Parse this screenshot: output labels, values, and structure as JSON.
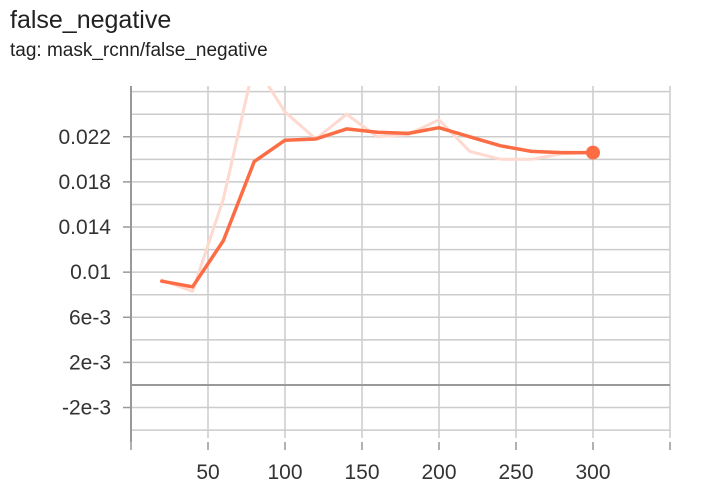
{
  "header": {
    "title": "false_negative",
    "subtitle": "tag: mask_rcnn/false_negative"
  },
  "colors": {
    "smoothed_line": "#fc6d45",
    "raw_line": "#fdd9cf",
    "grid": "#cccccc",
    "axis": "#999999",
    "zero_line": "#999999",
    "tick_text": "#333333"
  },
  "chart_data": {
    "type": "line",
    "title": "false_negative",
    "subtitle": "tag: mask_rcnn/false_negative",
    "xlabel": "",
    "ylabel": "",
    "xlim": [
      0,
      350
    ],
    "ylim": [
      -0.0047,
      0.0265
    ],
    "grid": true,
    "legend": "none",
    "x_ticks": [
      50,
      100,
      150,
      200,
      250,
      300
    ],
    "x_tick_labels": [
      "50",
      "100",
      "150",
      "200",
      "250",
      "300"
    ],
    "y_ticks": [
      -0.002,
      0.002,
      0.006,
      0.01,
      0.014,
      0.018,
      0.022
    ],
    "y_tick_labels": [
      "-2e-3",
      "2e-3",
      "6e-3",
      "0.01",
      "0.014",
      "0.018",
      "0.022"
    ],
    "series": [
      {
        "x": [
          20,
          40,
          60,
          80,
          100,
          120,
          140,
          160,
          180,
          200,
          220,
          240,
          260,
          280,
          300
        ],
        "y": [
          0.0093,
          0.0083,
          0.0165,
          0.0285,
          0.0242,
          0.0218,
          0.024,
          0.022,
          0.0222,
          0.0235,
          0.0207,
          0.02,
          0.02,
          0.0205,
          0.0206
        ]
      },
      {
        "x": [
          20,
          40,
          60,
          80,
          100,
          120,
          140,
          160,
          180,
          200,
          220,
          240,
          260,
          280,
          300
        ],
        "y": [
          0.0092,
          0.0087,
          0.0128,
          0.0198,
          0.0217,
          0.0218,
          0.0227,
          0.0224,
          0.0223,
          0.0228,
          0.022,
          0.0212,
          0.0207,
          0.0206,
          0.0206
        ]
      }
    ]
  }
}
